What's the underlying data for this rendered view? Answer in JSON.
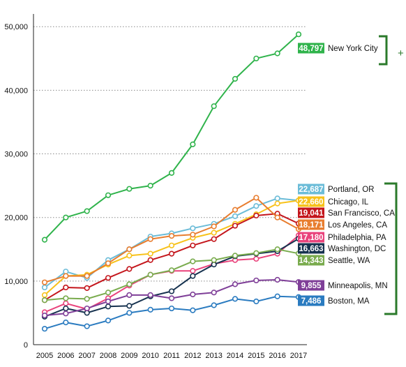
{
  "chart_data": {
    "type": "line",
    "title": "",
    "xlabel": "",
    "ylabel": "",
    "x": [
      "2005",
      "2006",
      "2007",
      "2008",
      "2009",
      "2010",
      "2011",
      "2012",
      "2013",
      "2014",
      "2015",
      "2016",
      "2017"
    ],
    "ylim": [
      0,
      52000
    ],
    "yticks": [
      0,
      10000,
      20000,
      30000,
      40000,
      50000
    ],
    "ytick_labels": [
      "0",
      "10,000",
      "20,000",
      "30,000",
      "40,000",
      "50,000"
    ],
    "grid": "horizontal dotted",
    "series": [
      {
        "name": "New York City",
        "color": "#2fb34b",
        "end_label": "48,797",
        "values": [
          16500,
          20000,
          21000,
          23500,
          24500,
          25000,
          27000,
          31500,
          37500,
          41800,
          45000,
          45800,
          48797
        ]
      },
      {
        "name": "Portland, OR",
        "color": "#6bbcd8",
        "end_label": "22,687",
        "values": [
          9000,
          11500,
          10500,
          13300,
          15000,
          17000,
          17500,
          18300,
          19000,
          20200,
          21800,
          23000,
          22687
        ]
      },
      {
        "name": "Chicago, IL",
        "color": "#f7c21b",
        "end_label": "22,660",
        "values": [
          7800,
          10800,
          11000,
          12600,
          14000,
          14300,
          15600,
          16800,
          17600,
          19000,
          20500,
          22200,
          22660
        ]
      },
      {
        "name": "San Francisco, CA",
        "color": "#c4161c",
        "end_label": "19,041",
        "values": [
          7000,
          9000,
          8900,
          10500,
          11900,
          13300,
          14300,
          15600,
          16600,
          18700,
          20300,
          20600,
          19041
        ]
      },
      {
        "name": "Los Angeles, CA",
        "color": "#e87d2f",
        "end_label": "18,171",
        "values": [
          9800,
          10800,
          10800,
          12800,
          15000,
          16600,
          17100,
          17300,
          18600,
          21200,
          23100,
          20000,
          18171
        ]
      },
      {
        "name": "Philadelphia, PA",
        "color": "#e9427b",
        "end_label": "17,180",
        "values": [
          5100,
          6500,
          5600,
          7300,
          9300,
          11000,
          11600,
          11600,
          12700,
          13300,
          13500,
          14300,
          17180
        ]
      },
      {
        "name": "Washington, DC",
        "color": "#16324f",
        "end_label": "16,663",
        "values": [
          4400,
          5700,
          5000,
          6000,
          6100,
          7600,
          8400,
          10800,
          12600,
          13900,
          14300,
          14700,
          16663
        ]
      },
      {
        "name": "Seattle, WA",
        "color": "#79ab4d",
        "end_label": "14,343",
        "values": [
          7000,
          7300,
          7200,
          8200,
          9500,
          11000,
          11700,
          13100,
          13300,
          14000,
          14400,
          15000,
          14343
        ]
      },
      {
        "name": "Minneapolis, MN",
        "color": "#7f3f98",
        "end_label": "9,855",
        "values": [
          4600,
          4900,
          5700,
          6800,
          7800,
          7800,
          7300,
          7900,
          8200,
          9500,
          10100,
          10200,
          9855
        ]
      },
      {
        "name": "Boston, MA",
        "color": "#2a7bc0",
        "end_label": "7,486",
        "values": [
          2500,
          3500,
          2900,
          3800,
          5000,
          5500,
          5700,
          5400,
          6200,
          7200,
          6800,
          7600,
          7486
        ]
      }
    ],
    "group_annotation": "+",
    "group_color": "#2b7a2b"
  }
}
